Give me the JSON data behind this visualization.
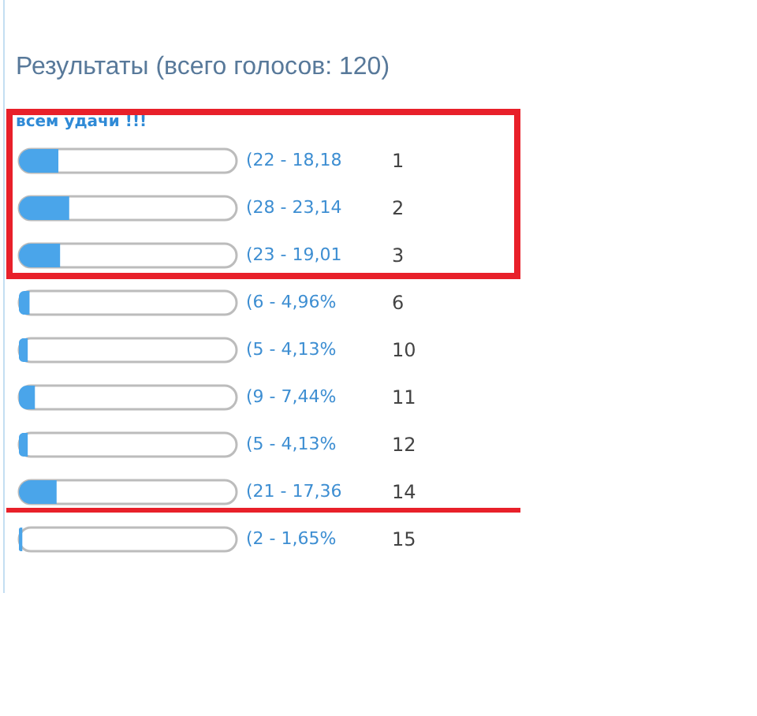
{
  "chart_data": {
    "type": "bar",
    "orientation": "horizontal",
    "title": "Результаты (всего голосов: 120)",
    "subtitle": "всем удачи !!!",
    "categories": [
      "1",
      "2",
      "3",
      "6",
      "10",
      "11",
      "12",
      "14",
      "15"
    ],
    "values": [
      22,
      28,
      23,
      6,
      5,
      9,
      5,
      21,
      2
    ],
    "value_labels": [
      "(22 - 18,18",
      "(28 - 23,14",
      "(23 - 19,01",
      "(6 - 4,96%",
      "(5 - 4,13%",
      "(9 - 7,44%",
      "(5 - 4,13%",
      "(21 - 17,36",
      "(2 - 1,65%"
    ],
    "color": "#4aa5ea",
    "xlim": [
      0,
      121
    ],
    "tick_labels": "y",
    "ref_lines": [
      {
        "axis": "y",
        "value": "14",
        "color": "#e8202a"
      }
    ]
  }
}
